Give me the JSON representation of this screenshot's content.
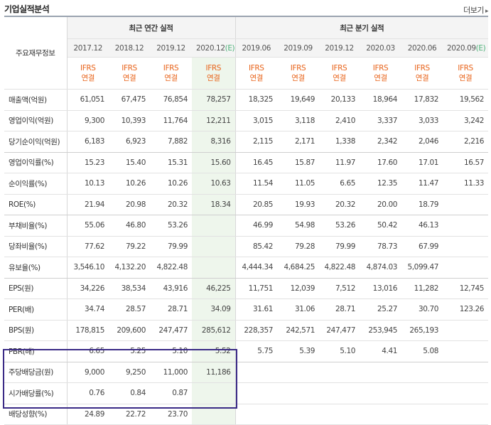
{
  "page": {
    "title": "기업실적분석",
    "more_label": "더보기",
    "more_arrow": "▸"
  },
  "header": {
    "row_label": "주요재무정보",
    "annual_title": "최근 연간 실적",
    "quarterly_title": "최근 분기 실적",
    "annual_periods": [
      {
        "label": "2017.12",
        "est": ""
      },
      {
        "label": "2018.12",
        "est": ""
      },
      {
        "label": "2019.12",
        "est": ""
      },
      {
        "label": "2020.12",
        "est": "(E)"
      }
    ],
    "quarterly_periods": [
      {
        "label": "2019.06",
        "est": ""
      },
      {
        "label": "2019.09",
        "est": ""
      },
      {
        "label": "2019.12",
        "est": ""
      },
      {
        "label": "2020.03",
        "est": ""
      },
      {
        "label": "2020.06",
        "est": ""
      },
      {
        "label": "2020.09",
        "est": "(E)"
      }
    ],
    "ifrs_line1": "IFRS",
    "ifrs_line2": "연결"
  },
  "rows": [
    {
      "label": "매출액(억원)",
      "values": [
        "61,051",
        "67,475",
        "76,854",
        "78,257",
        "18,325",
        "19,649",
        "20,133",
        "18,964",
        "17,832",
        "19,562"
      ]
    },
    {
      "label": "영업이익(억원)",
      "values": [
        "9,300",
        "10,393",
        "11,764",
        "12,211",
        "3,015",
        "3,118",
        "2,410",
        "3,337",
        "3,033",
        "3,242"
      ]
    },
    {
      "label": "당기순이익(억원)",
      "values": [
        "6,183",
        "6,923",
        "7,882",
        "8,316",
        "2,115",
        "2,171",
        "1,338",
        "2,342",
        "2,046",
        "2,216"
      ]
    },
    {
      "label": "영업이익률(%)",
      "values": [
        "15.23",
        "15.40",
        "15.31",
        "15.60",
        "16.45",
        "15.87",
        "11.97",
        "17.60",
        "17.01",
        "16.57"
      ]
    },
    {
      "label": "순이익률(%)",
      "values": [
        "10.13",
        "10.26",
        "10.26",
        "10.63",
        "11.54",
        "11.05",
        "6.65",
        "12.35",
        "11.47",
        "11.33"
      ]
    },
    {
      "label": "ROE(%)",
      "values": [
        "21.94",
        "20.98",
        "20.32",
        "18.34",
        "20.85",
        "19.93",
        "20.32",
        "20.00",
        "18.79",
        ""
      ]
    },
    {
      "label": "부채비율(%)",
      "values": [
        "55.06",
        "46.80",
        "53.26",
        "",
        "46.99",
        "54.98",
        "53.26",
        "50.42",
        "46.13",
        ""
      ]
    },
    {
      "label": "당좌비율(%)",
      "values": [
        "77.62",
        "79.22",
        "79.99",
        "",
        "85.42",
        "79.28",
        "79.99",
        "78.73",
        "67.99",
        ""
      ]
    },
    {
      "label": "유보율(%)",
      "values": [
        "3,546.10",
        "4,132.20",
        "4,822.48",
        "",
        "4,444.34",
        "4,684.25",
        "4,822.48",
        "4,874.03",
        "5,099.47",
        ""
      ]
    },
    {
      "label": "EPS(원)",
      "values": [
        "34,226",
        "38,534",
        "43,916",
        "46,225",
        "11,751",
        "12,039",
        "7,512",
        "13,016",
        "11,282",
        "12,745"
      ]
    },
    {
      "label": "PER(배)",
      "values": [
        "34.74",
        "28.57",
        "28.71",
        "34.09",
        "31.61",
        "31.06",
        "28.71",
        "25.27",
        "30.70",
        "123.26"
      ]
    },
    {
      "label": "BPS(원)",
      "values": [
        "178,815",
        "209,600",
        "247,477",
        "285,612",
        "228,357",
        "242,571",
        "247,477",
        "253,945",
        "265,193",
        ""
      ]
    },
    {
      "label": "PBR(배)",
      "values": [
        "6.65",
        "5.25",
        "5.10",
        "5.52",
        "5.75",
        "5.39",
        "5.10",
        "4.41",
        "5.08",
        ""
      ]
    },
    {
      "label": "주당배당금(원)",
      "values": [
        "9,000",
        "9,250",
        "11,000",
        "11,186",
        "",
        "",
        "",
        "",
        "",
        ""
      ]
    },
    {
      "label": "시가배당률(%)",
      "values": [
        "0.76",
        "0.84",
        "0.87",
        "",
        "",
        "",
        "",
        "",
        "",
        ""
      ]
    },
    {
      "label": "배당성향(%)",
      "values": [
        "24.89",
        "22.72",
        "23.70",
        "",
        "",
        "",
        "",
        "",
        "",
        ""
      ]
    }
  ],
  "colors": {
    "ifrs": "#e8631a",
    "estimate": "#4fb27a",
    "estimate_bg": "#eef6ec",
    "highlight_box": "#3a2a86"
  }
}
